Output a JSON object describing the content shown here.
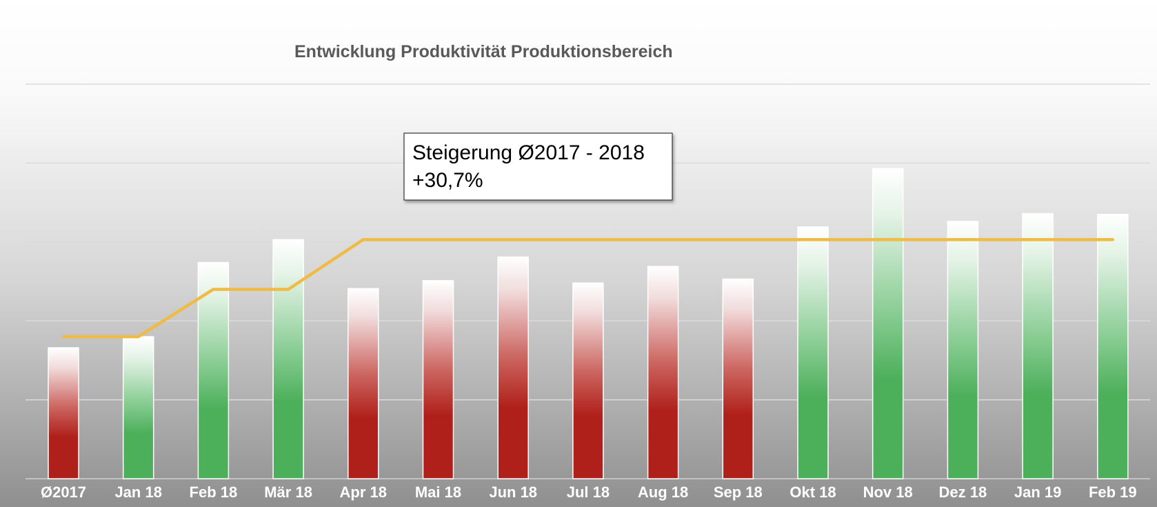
{
  "chart_data": {
    "type": "bar",
    "title": "Entwicklung Produktivität Produktionsbereich",
    "categories": [
      "Ø2017",
      "Jan 18",
      "Feb 18",
      "Mär 18",
      "Apr 18",
      "Mai 18",
      "Jun 18",
      "Jul 18",
      "Aug 18",
      "Sep 18",
      "Okt 18",
      "Nov 18",
      "Dez 18",
      "Jan 19",
      "Feb 19"
    ],
    "series": [
      {
        "type": "bar",
        "values": [
          1.66,
          1.8,
          2.74,
          3.03,
          2.41,
          2.51,
          2.81,
          2.48,
          2.69,
          2.53,
          3.19,
          3.93,
          3.26,
          3.36,
          3.35
        ]
      },
      {
        "type": "line",
        "values": [
          1.8,
          1.8,
          2.4,
          2.4,
          3.03,
          3.03,
          3.03,
          3.03,
          3.03,
          3.03,
          3.03,
          3.03,
          3.03,
          3.03,
          3.03
        ]
      }
    ],
    "bar_status": [
      "down",
      "up",
      "up",
      "up",
      "down",
      "down",
      "down",
      "down",
      "down",
      "down",
      "up",
      "up",
      "up",
      "up",
      "up"
    ],
    "ylim": [
      0,
      5
    ],
    "gridlines": 5,
    "grid": true,
    "axis_value_labels": false,
    "legend": "none",
    "annotation": {
      "line1": "Steigerung Ø2017 - 2018",
      "line2": "+30,7%"
    },
    "colors": {
      "up": "#4caf5a",
      "down": "#b0201a",
      "line": "#f0bb45",
      "grid": "#dcdcdc",
      "background_top": "#ffffff",
      "background_bottom": "#8f8f8f",
      "label": "#ffffff",
      "title": "#595959"
    }
  }
}
